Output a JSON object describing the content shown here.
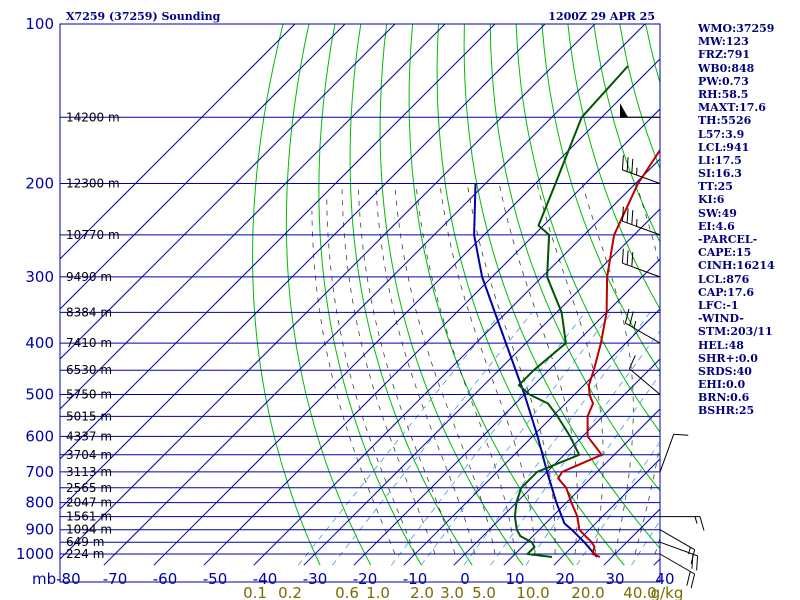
{
  "header": {
    "station_title": "X7259 (37259) Sounding",
    "valid_time": "1200Z 29 APR 25"
  },
  "indices": [
    "WMO:37259",
    "MW:123",
    "FRZ:791",
    "WB0:848",
    "PW:0.73",
    "RH:58.5",
    "MAXT:17.6",
    "TH:5526",
    "L57:3.9",
    "LCL:941",
    "LI:17.5",
    "SI:16.3",
    "TT:25",
    "KI:6",
    "SW:49",
    "EI:4.6",
    "-PARCEL-",
    "CAPE:15",
    "CINH:16214",
    "LCL:876",
    "CAP:17.6",
    "LFC:-1",
    "-WIND-",
    "STM:203/11",
    "HEL:48",
    "SHR+:0.0",
    "SRDS:40",
    "EHI:0.0",
    "BRN:0.6",
    "BSHR:25"
  ],
  "colors": {
    "isobar": "#0000aa",
    "isotherm": "#0000aa",
    "dry_adiabat": "#00bb00",
    "moist_adiabat": "#000000",
    "mixing_ratio": "#4a9bd6",
    "temperature": "#bb0000",
    "dewpoint": "#005500",
    "parcel": "#0000aa",
    "wind_barb": "#000000"
  },
  "chart_data": {
    "type": "skew-t",
    "pressure_axis_unit": "mb",
    "pressure_levels": [
      100,
      200,
      300,
      400,
      500,
      600,
      700,
      800,
      900,
      1000
    ],
    "temperature_ticks": [
      -80,
      -70,
      -60,
      -50,
      -40,
      -30,
      -20,
      -10,
      0,
      10,
      20,
      30,
      40
    ],
    "temperature_tick_labels": [
      "mb-80",
      "-70",
      "-60",
      "-50",
      "-40",
      "-30",
      "-20",
      "-10",
      "0",
      "10",
      "20",
      "30",
      "40"
    ],
    "mixing_ratio_labels": [
      "0.1",
      "0.2",
      "0.6",
      "1.0",
      "2.0",
      "3.0",
      "5.0",
      "10.0",
      "20.0",
      "40.0",
      "g/kg"
    ],
    "mixing_ratio_values": [
      0.1,
      0.2,
      0.6,
      1.0,
      2.0,
      3.0,
      5.0,
      10.0,
      20.0,
      40.0
    ],
    "height_labels": [
      {
        "p": 150,
        "label": "14200 m"
      },
      {
        "p": 200,
        "label": "12300 m"
      },
      {
        "p": 250,
        "label": "10770 m"
      },
      {
        "p": 300,
        "label": "9490 m"
      },
      {
        "p": 350,
        "label": "8384 m"
      },
      {
        "p": 400,
        "label": "7410 m"
      },
      {
        "p": 450,
        "label": "6530 m"
      },
      {
        "p": 500,
        "label": "5750 m"
      },
      {
        "p": 550,
        "label": "5015 m"
      },
      {
        "p": 600,
        "label": "4337 m"
      },
      {
        "p": 650,
        "label": "3704 m"
      },
      {
        "p": 700,
        "label": "3113 m"
      },
      {
        "p": 750,
        "label": "2565 m"
      },
      {
        "p": 800,
        "label": "2047 m"
      },
      {
        "p": 850,
        "label": "1561 m"
      },
      {
        "p": 900,
        "label": "1094 m"
      },
      {
        "p": 950,
        "label": "649 m"
      },
      {
        "p": 1000,
        "label": "224 m"
      }
    ],
    "temperature_profile": [
      {
        "p": 1013,
        "t": 17.6
      },
      {
        "p": 1000,
        "t": 15.5
      },
      {
        "p": 970,
        "t": 14.5
      },
      {
        "p": 950,
        "t": 13.0
      },
      {
        "p": 925,
        "t": 10.5
      },
      {
        "p": 900,
        "t": 8.0
      },
      {
        "p": 850,
        "t": 5.0
      },
      {
        "p": 800,
        "t": 1.0
      },
      {
        "p": 750,
        "t": -3.0
      },
      {
        "p": 720,
        "t": -6.5
      },
      {
        "p": 700,
        "t": -7.0
      },
      {
        "p": 650,
        "t": -2.5
      },
      {
        "p": 630,
        "t": -5.0
      },
      {
        "p": 600,
        "t": -9.0
      },
      {
        "p": 550,
        "t": -13.0
      },
      {
        "p": 520,
        "t": -14.5
      },
      {
        "p": 500,
        "t": -17.0
      },
      {
        "p": 480,
        "t": -19.0
      },
      {
        "p": 450,
        "t": -21.0
      },
      {
        "p": 400,
        "t": -25.0
      },
      {
        "p": 350,
        "t": -30.0
      },
      {
        "p": 300,
        "t": -37.0
      },
      {
        "p": 250,
        "t": -44.0
      },
      {
        "p": 200,
        "t": -49.5
      },
      {
        "p": 150,
        "t": -54.0
      },
      {
        "p": 120,
        "t": -55.5
      }
    ],
    "dewpoint_profile": [
      {
        "p": 1013,
        "t": 8.0
      },
      {
        "p": 1000,
        "t": 2.5
      },
      {
        "p": 970,
        "t": 2.5
      },
      {
        "p": 950,
        "t": 1.0
      },
      {
        "p": 925,
        "t": -2.5
      },
      {
        "p": 900,
        "t": -4.5
      },
      {
        "p": 850,
        "t": -7.5
      },
      {
        "p": 800,
        "t": -10.0
      },
      {
        "p": 750,
        "t": -12.0
      },
      {
        "p": 700,
        "t": -12.0
      },
      {
        "p": 650,
        "t": -7.0
      },
      {
        "p": 600,
        "t": -12.5
      },
      {
        "p": 550,
        "t": -19.0
      },
      {
        "p": 520,
        "t": -23.5
      },
      {
        "p": 500,
        "t": -29.0
      },
      {
        "p": 480,
        "t": -33.0
      },
      {
        "p": 450,
        "t": -33.0
      },
      {
        "p": 400,
        "t": -32.0
      },
      {
        "p": 350,
        "t": -39.0
      },
      {
        "p": 300,
        "t": -49.0
      },
      {
        "p": 250,
        "t": -57.0
      },
      {
        "p": 240,
        "t": -61.0
      },
      {
        "p": 200,
        "t": -66.0
      },
      {
        "p": 150,
        "t": -74.0
      },
      {
        "p": 120,
        "t": -75.0
      }
    ],
    "parcel_path": [
      {
        "p": 1013,
        "t": 17.0
      },
      {
        "p": 950,
        "t": 11.5
      },
      {
        "p": 900,
        "t": 6.5
      },
      {
        "p": 876,
        "t": 3.8
      },
      {
        "p": 800,
        "t": -2.0
      },
      {
        "p": 700,
        "t": -10.0
      },
      {
        "p": 600,
        "t": -19.0
      },
      {
        "p": 500,
        "t": -30.0
      },
      {
        "p": 400,
        "t": -44.0
      },
      {
        "p": 300,
        "t": -62.0
      },
      {
        "p": 250,
        "t": -72.0
      },
      {
        "p": 200,
        "t": -82.0
      }
    ],
    "wind_barbs": [
      {
        "p": 150,
        "dir": 270,
        "speed": 50
      },
      {
        "p": 200,
        "dir": 290,
        "speed": 35
      },
      {
        "p": 250,
        "dir": 290,
        "speed": 35
      },
      {
        "p": 300,
        "dir": 290,
        "speed": 30
      },
      {
        "p": 400,
        "dir": 300,
        "speed": 25
      },
      {
        "p": 500,
        "dir": 310,
        "speed": 10
      },
      {
        "p": 700,
        "dir": 20,
        "speed": 10
      },
      {
        "p": 850,
        "dir": 90,
        "speed": 15
      },
      {
        "p": 900,
        "dir": 120,
        "speed": 15
      },
      {
        "p": 950,
        "dir": 110,
        "speed": 20
      },
      {
        "p": 1000,
        "dir": 120,
        "speed": 20
      }
    ],
    "xlabel": "",
    "ylabel": "mb",
    "grid": true
  }
}
